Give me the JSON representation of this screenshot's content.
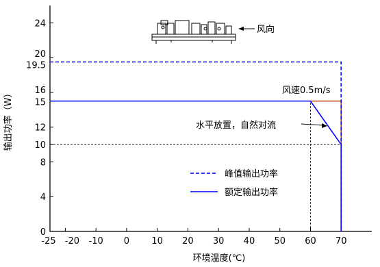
{
  "chart_data": {
    "type": "line",
    "xlabel": "环境温度(℃)",
    "ylabel": "输出功率（W）",
    "xlim": [
      -25,
      80
    ],
    "ylim": [
      0,
      26
    ],
    "x_ticks": [
      -25,
      -20,
      -10,
      0,
      10,
      20,
      30,
      40,
      50,
      60,
      70
    ],
    "x_tick_labels": [
      "-25",
      "-20",
      "-10",
      "0",
      "10",
      "20",
      "30",
      "40",
      "50",
      "60",
      "70"
    ],
    "y_ticks": [
      0,
      4,
      8,
      10,
      12,
      15,
      16,
      19.5,
      20,
      24
    ],
    "y_tick_labels": [
      "0",
      "4",
      "8",
      "10",
      "12",
      "15",
      "16",
      "19.5",
      "20",
      "24"
    ],
    "series": [
      {
        "name": "峰值输出功率",
        "style": "dashed",
        "color": "#0000ff",
        "x": [
          -25,
          70,
          70
        ],
        "y": [
          19.5,
          19.5,
          0
        ]
      },
      {
        "name": "额定输出功率",
        "style": "solid",
        "color": "#0000ff",
        "x": [
          -25,
          60,
          70,
          70
        ],
        "y": [
          15,
          15,
          10,
          0
        ]
      },
      {
        "name": "",
        "style": "solid",
        "color": "#b84a1e",
        "x": [
          60,
          70,
          70
        ],
        "y": [
          15,
          15,
          10
        ]
      }
    ],
    "reference_lines": [
      {
        "x": [
          -25,
          70
        ],
        "y": [
          10,
          10
        ]
      },
      {
        "x": [
          60,
          60
        ],
        "y": [
          0,
          15
        ]
      }
    ],
    "annotations": {
      "wind_direction": "风向",
      "wind_speed": "风速0.5m/s",
      "placement": "水平放置，自然对流"
    },
    "legend_position": "center-right",
    "grid": false
  }
}
